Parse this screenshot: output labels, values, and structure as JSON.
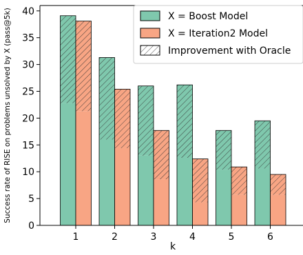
{
  "chart_data": {
    "type": "bar",
    "categories": [
      "1",
      "2",
      "3",
      "4",
      "5",
      "6"
    ],
    "xlabel": "k",
    "ylabel": "Success rate of RISE on problems unsolved by X (pass@5k)",
    "ylim": [
      0,
      41
    ],
    "yticks": [
      0,
      5,
      10,
      15,
      20,
      25,
      30,
      35,
      40
    ],
    "grid": false,
    "legend_position": "top-right",
    "series": [
      {
        "name": "X = Boost Model",
        "color": "#7fc8ad",
        "base": [
          22.8,
          16.0,
          13.0,
          12.6,
          10.4,
          10.6
        ],
        "with_oracle": [
          39.1,
          31.3,
          26.0,
          26.2,
          17.7,
          19.5
        ]
      },
      {
        "name": "X = Iteration2 Model",
        "color": "#f8a584",
        "base": [
          21.3,
          14.4,
          8.6,
          4.3,
          5.7,
          5.7
        ],
        "with_oracle": [
          38.1,
          25.4,
          17.7,
          12.4,
          10.9,
          9.5
        ]
      }
    ],
    "hatch_legend": "Improvement with Oracle"
  }
}
